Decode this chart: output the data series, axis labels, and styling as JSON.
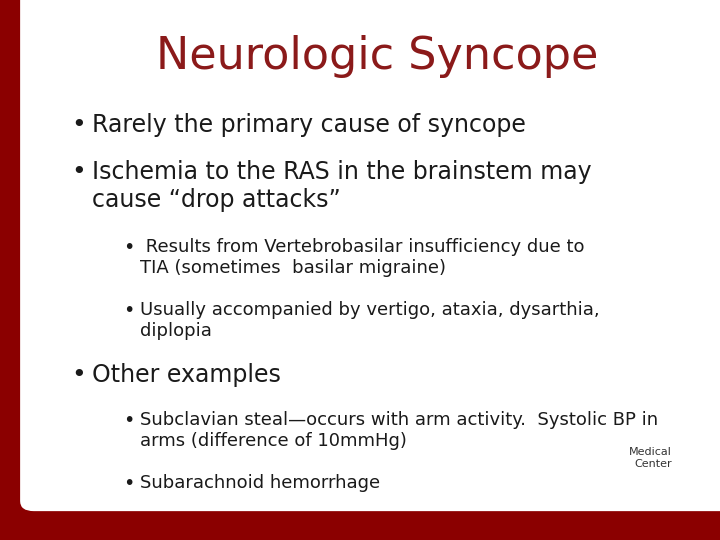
{
  "title": "Neurologic Syncope",
  "title_color": "#8B1A1A",
  "title_fontsize": 32,
  "background_color": "#FFFFFF",
  "border_color": "#8B0000",
  "text_color": "#1A1A1A",
  "bullet_l1_fontsize": 17,
  "bullet_l2_fontsize": 13,
  "left_bar_width": 0.047,
  "bottom_bar_height": 0.072,
  "content": [
    {
      "level": 1,
      "text": "Rarely the primary cause of syncope"
    },
    {
      "level": 1,
      "text": "Ischemia to the RAS in the brainstem may\ncause “drop attacks”"
    },
    {
      "level": 2,
      "text": " Results from Vertebrobasilar insufficiency due to\nTIA (sometimes  basilar migraine)"
    },
    {
      "level": 2,
      "text": "Usually accompanied by vertigo, ataxia, dysarthia,\ndiplopia"
    },
    {
      "level": 1,
      "text": "Other examples"
    },
    {
      "level": 2,
      "text": "Subclavian steal—occurs with arm activity.  Systolic BP in\narms (difference of 10mmHg)"
    },
    {
      "level": 2,
      "text": "Subarachnoid hemorrhage"
    }
  ]
}
